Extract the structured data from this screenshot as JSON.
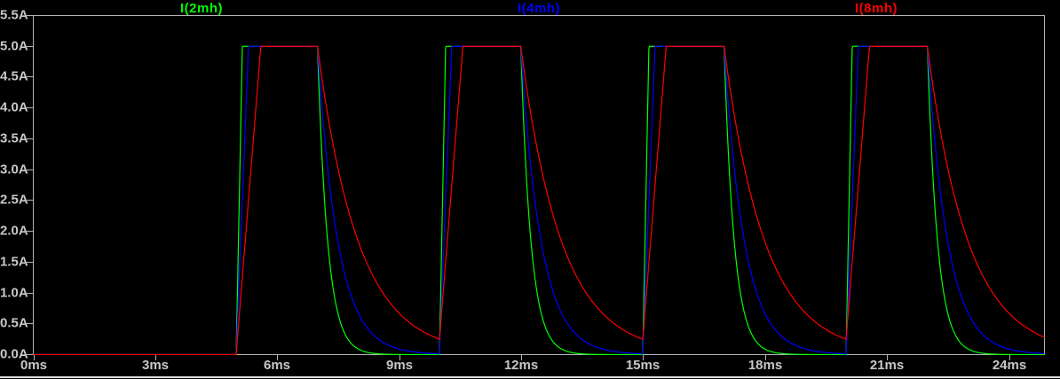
{
  "window": {
    "app": "waveform-viewer",
    "background": "#000000",
    "axis_color": "#b4b4b4",
    "text_color": "#c8c8c8",
    "bottom_edge_color": "#e2e2e2"
  },
  "chart_data": {
    "type": "line",
    "title": "",
    "xlabel": "",
    "ylabel": "",
    "x_unit": "ms",
    "y_unit": "A",
    "xlim": [
      0,
      24.87
    ],
    "ylim": [
      0,
      5.5
    ],
    "grid": false,
    "legend_position": "top",
    "x_ticks": [
      {
        "v": 0,
        "label": "0ms"
      },
      {
        "v": 3,
        "label": "3ms"
      },
      {
        "v": 6,
        "label": "6ms"
      },
      {
        "v": 9,
        "label": "9ms"
      },
      {
        "v": 12,
        "label": "12ms"
      },
      {
        "v": 15,
        "label": "15ms"
      },
      {
        "v": 18,
        "label": "18ms"
      },
      {
        "v": 21,
        "label": "21ms"
      },
      {
        "v": 24,
        "label": "24ms"
      }
    ],
    "y_ticks": [
      {
        "v": 5.5,
        "label": "5.5A"
      },
      {
        "v": 5.0,
        "label": "5.0A"
      },
      {
        "v": 4.5,
        "label": "4.5A"
      },
      {
        "v": 4.0,
        "label": "4.0A"
      },
      {
        "v": 3.5,
        "label": "3.5A"
      },
      {
        "v": 3.0,
        "label": "3.0A"
      },
      {
        "v": 2.5,
        "label": "2.5A"
      },
      {
        "v": 2.0,
        "label": "2.0A"
      },
      {
        "v": 1.5,
        "label": "1.5A"
      },
      {
        "v": 1.0,
        "label": "1.0A"
      },
      {
        "v": 0.5,
        "label": "0.5A"
      },
      {
        "v": 0.0,
        "label": "0.0A"
      }
    ],
    "pulse_train": {
      "description": "All traces are 0A until 5ms. Current pulses to a 5A plateau during each on-window, then decays exponentially; ramp rate and decay time constant scale with inductance.",
      "on_windows_ms": [
        [
          5,
          7
        ],
        [
          10,
          12
        ],
        [
          15,
          17
        ],
        [
          20,
          22
        ]
      ],
      "plateau_A": 5,
      "period_ms": 5
    },
    "series": [
      {
        "name": "I(2mh)",
        "color": "#00ff00",
        "rise_slope_A_per_ms": 33.0,
        "decay_tau_ms": 0.25
      },
      {
        "name": "I(4mh)",
        "color": "#0000ff",
        "rise_slope_A_per_ms": 16.5,
        "decay_tau_ms": 0.5
      },
      {
        "name": "I(8mh)",
        "color": "#ff0000",
        "rise_slope_A_per_ms": 8.25,
        "decay_tau_ms": 1.0
      }
    ]
  }
}
